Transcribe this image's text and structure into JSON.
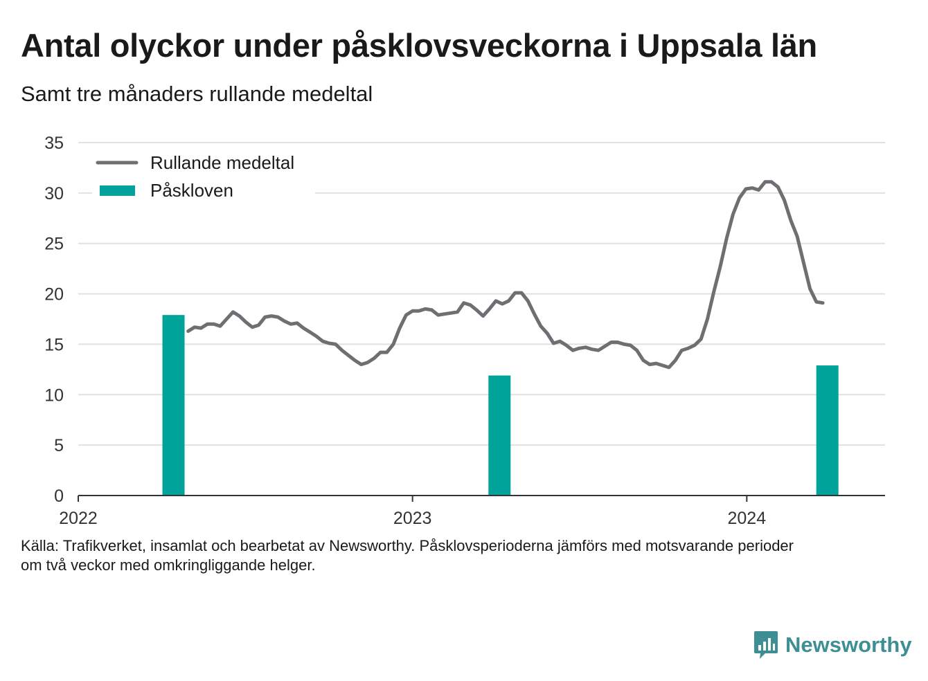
{
  "header": {
    "title": "Antal olyckor under påsklovsveckorna i Uppsala län",
    "subtitle": "Samt tre månaders rullande medeltal"
  },
  "footer": {
    "lines": [
      "Källa: Trafikverket, insamlat och bearbetat av Newsworthy. Påsklovsperioderna jämförs med motsvarande perioder",
      "om två veckor med omkringliggande helger."
    ],
    "logo_text": "Newsworthy",
    "logo_icon": "bar-chart-speech-bubble-icon"
  },
  "colors": {
    "line": "#6e6e73",
    "bar": "#00a39a",
    "grid": "#e1e1e1",
    "axis": "#333333",
    "logo": "#3d8f93"
  },
  "chart_data": {
    "type": "bar+line",
    "x_axis": {
      "type": "time",
      "ticks": [
        "2022",
        "2023",
        "2024"
      ],
      "range": [
        "2022-01-01",
        "2024-05-31"
      ]
    },
    "y_axis": {
      "ticks": [
        0,
        5,
        10,
        15,
        20,
        25,
        30,
        35
      ],
      "range": [
        0,
        35
      ]
    },
    "grid": "horizontal",
    "legend": {
      "position": "top-left",
      "entries": [
        {
          "label": "Rullande medeltal",
          "kind": "line"
        },
        {
          "label": "Påskloven",
          "kind": "bar"
        }
      ]
    },
    "bars": {
      "name": "Påskloven",
      "points": [
        {
          "x": "2022-04-15",
          "y": 17.9
        },
        {
          "x": "2023-04-06",
          "y": 11.9
        },
        {
          "x": "2024-03-29",
          "y": 12.9
        }
      ]
    },
    "line": {
      "name": "Rullande medeltal",
      "points": [
        {
          "x": "2022-05-01",
          "y": 16.3
        },
        {
          "x": "2022-05-08",
          "y": 16.7
        },
        {
          "x": "2022-05-15",
          "y": 16.6
        },
        {
          "x": "2022-05-22",
          "y": 17.0
        },
        {
          "x": "2022-05-29",
          "y": 17.0
        },
        {
          "x": "2022-06-05",
          "y": 16.8
        },
        {
          "x": "2022-06-12",
          "y": 17.5
        },
        {
          "x": "2022-06-19",
          "y": 18.2
        },
        {
          "x": "2022-06-26",
          "y": 17.8
        },
        {
          "x": "2022-07-03",
          "y": 17.2
        },
        {
          "x": "2022-07-10",
          "y": 16.7
        },
        {
          "x": "2022-07-17",
          "y": 16.9
        },
        {
          "x": "2022-07-24",
          "y": 17.7
        },
        {
          "x": "2022-07-31",
          "y": 17.8
        },
        {
          "x": "2022-08-07",
          "y": 17.7
        },
        {
          "x": "2022-08-14",
          "y": 17.3
        },
        {
          "x": "2022-08-21",
          "y": 17.0
        },
        {
          "x": "2022-08-28",
          "y": 17.1
        },
        {
          "x": "2022-09-04",
          "y": 16.6
        },
        {
          "x": "2022-09-11",
          "y": 16.2
        },
        {
          "x": "2022-09-18",
          "y": 15.8
        },
        {
          "x": "2022-09-25",
          "y": 15.3
        },
        {
          "x": "2022-10-02",
          "y": 15.1
        },
        {
          "x": "2022-10-09",
          "y": 15.0
        },
        {
          "x": "2022-10-16",
          "y": 14.4
        },
        {
          "x": "2022-10-23",
          "y": 13.9
        },
        {
          "x": "2022-10-30",
          "y": 13.4
        },
        {
          "x": "2022-11-06",
          "y": 13.0
        },
        {
          "x": "2022-11-13",
          "y": 13.2
        },
        {
          "x": "2022-11-20",
          "y": 13.6
        },
        {
          "x": "2022-11-27",
          "y": 14.2
        },
        {
          "x": "2022-12-04",
          "y": 14.2
        },
        {
          "x": "2022-12-11",
          "y": 15.0
        },
        {
          "x": "2022-12-18",
          "y": 16.6
        },
        {
          "x": "2022-12-25",
          "y": 17.9
        },
        {
          "x": "2023-01-01",
          "y": 18.3
        },
        {
          "x": "2023-01-08",
          "y": 18.3
        },
        {
          "x": "2023-01-15",
          "y": 18.5
        },
        {
          "x": "2023-01-22",
          "y": 18.4
        },
        {
          "x": "2023-01-29",
          "y": 17.9
        },
        {
          "x": "2023-02-05",
          "y": 18.0
        },
        {
          "x": "2023-02-12",
          "y": 18.1
        },
        {
          "x": "2023-02-19",
          "y": 18.2
        },
        {
          "x": "2023-02-26",
          "y": 19.1
        },
        {
          "x": "2023-03-05",
          "y": 18.9
        },
        {
          "x": "2023-03-12",
          "y": 18.4
        },
        {
          "x": "2023-03-19",
          "y": 17.8
        },
        {
          "x": "2023-03-26",
          "y": 18.5
        },
        {
          "x": "2023-04-02",
          "y": 19.3
        },
        {
          "x": "2023-04-09",
          "y": 19.0
        },
        {
          "x": "2023-04-16",
          "y": 19.3
        },
        {
          "x": "2023-04-23",
          "y": 20.1
        },
        {
          "x": "2023-04-30",
          "y": 20.1
        },
        {
          "x": "2023-05-07",
          "y": 19.3
        },
        {
          "x": "2023-05-14",
          "y": 18.0
        },
        {
          "x": "2023-05-21",
          "y": 16.8
        },
        {
          "x": "2023-05-28",
          "y": 16.1
        },
        {
          "x": "2023-06-04",
          "y": 15.1
        },
        {
          "x": "2023-06-11",
          "y": 15.3
        },
        {
          "x": "2023-06-18",
          "y": 14.9
        },
        {
          "x": "2023-06-25",
          "y": 14.4
        },
        {
          "x": "2023-07-02",
          "y": 14.6
        },
        {
          "x": "2023-07-09",
          "y": 14.7
        },
        {
          "x": "2023-07-16",
          "y": 14.5
        },
        {
          "x": "2023-07-23",
          "y": 14.4
        },
        {
          "x": "2023-07-30",
          "y": 14.8
        },
        {
          "x": "2023-08-06",
          "y": 15.2
        },
        {
          "x": "2023-08-13",
          "y": 15.2
        },
        {
          "x": "2023-08-20",
          "y": 15.0
        },
        {
          "x": "2023-08-27",
          "y": 14.9
        },
        {
          "x": "2023-09-03",
          "y": 14.4
        },
        {
          "x": "2023-09-10",
          "y": 13.4
        },
        {
          "x": "2023-09-17",
          "y": 13.0
        },
        {
          "x": "2023-09-24",
          "y": 13.1
        },
        {
          "x": "2023-10-01",
          "y": 12.9
        },
        {
          "x": "2023-10-08",
          "y": 12.7
        },
        {
          "x": "2023-10-15",
          "y": 13.4
        },
        {
          "x": "2023-10-22",
          "y": 14.4
        },
        {
          "x": "2023-10-29",
          "y": 14.6
        },
        {
          "x": "2023-11-05",
          "y": 14.9
        },
        {
          "x": "2023-11-12",
          "y": 15.5
        },
        {
          "x": "2023-11-19",
          "y": 17.5
        },
        {
          "x": "2023-11-26",
          "y": 20.2
        },
        {
          "x": "2023-12-03",
          "y": 22.7
        },
        {
          "x": "2023-12-10",
          "y": 25.5
        },
        {
          "x": "2023-12-17",
          "y": 27.9
        },
        {
          "x": "2023-12-24",
          "y": 29.5
        },
        {
          "x": "2023-12-31",
          "y": 30.4
        },
        {
          "x": "2024-01-07",
          "y": 30.5
        },
        {
          "x": "2024-01-14",
          "y": 30.3
        },
        {
          "x": "2024-01-21",
          "y": 31.1
        },
        {
          "x": "2024-01-28",
          "y": 31.1
        },
        {
          "x": "2024-02-04",
          "y": 30.6
        },
        {
          "x": "2024-02-11",
          "y": 29.3
        },
        {
          "x": "2024-02-18",
          "y": 27.3
        },
        {
          "x": "2024-02-25",
          "y": 25.7
        },
        {
          "x": "2024-03-03",
          "y": 23.1
        },
        {
          "x": "2024-03-10",
          "y": 20.5
        },
        {
          "x": "2024-03-17",
          "y": 19.2
        },
        {
          "x": "2024-03-24",
          "y": 19.1
        }
      ]
    }
  }
}
